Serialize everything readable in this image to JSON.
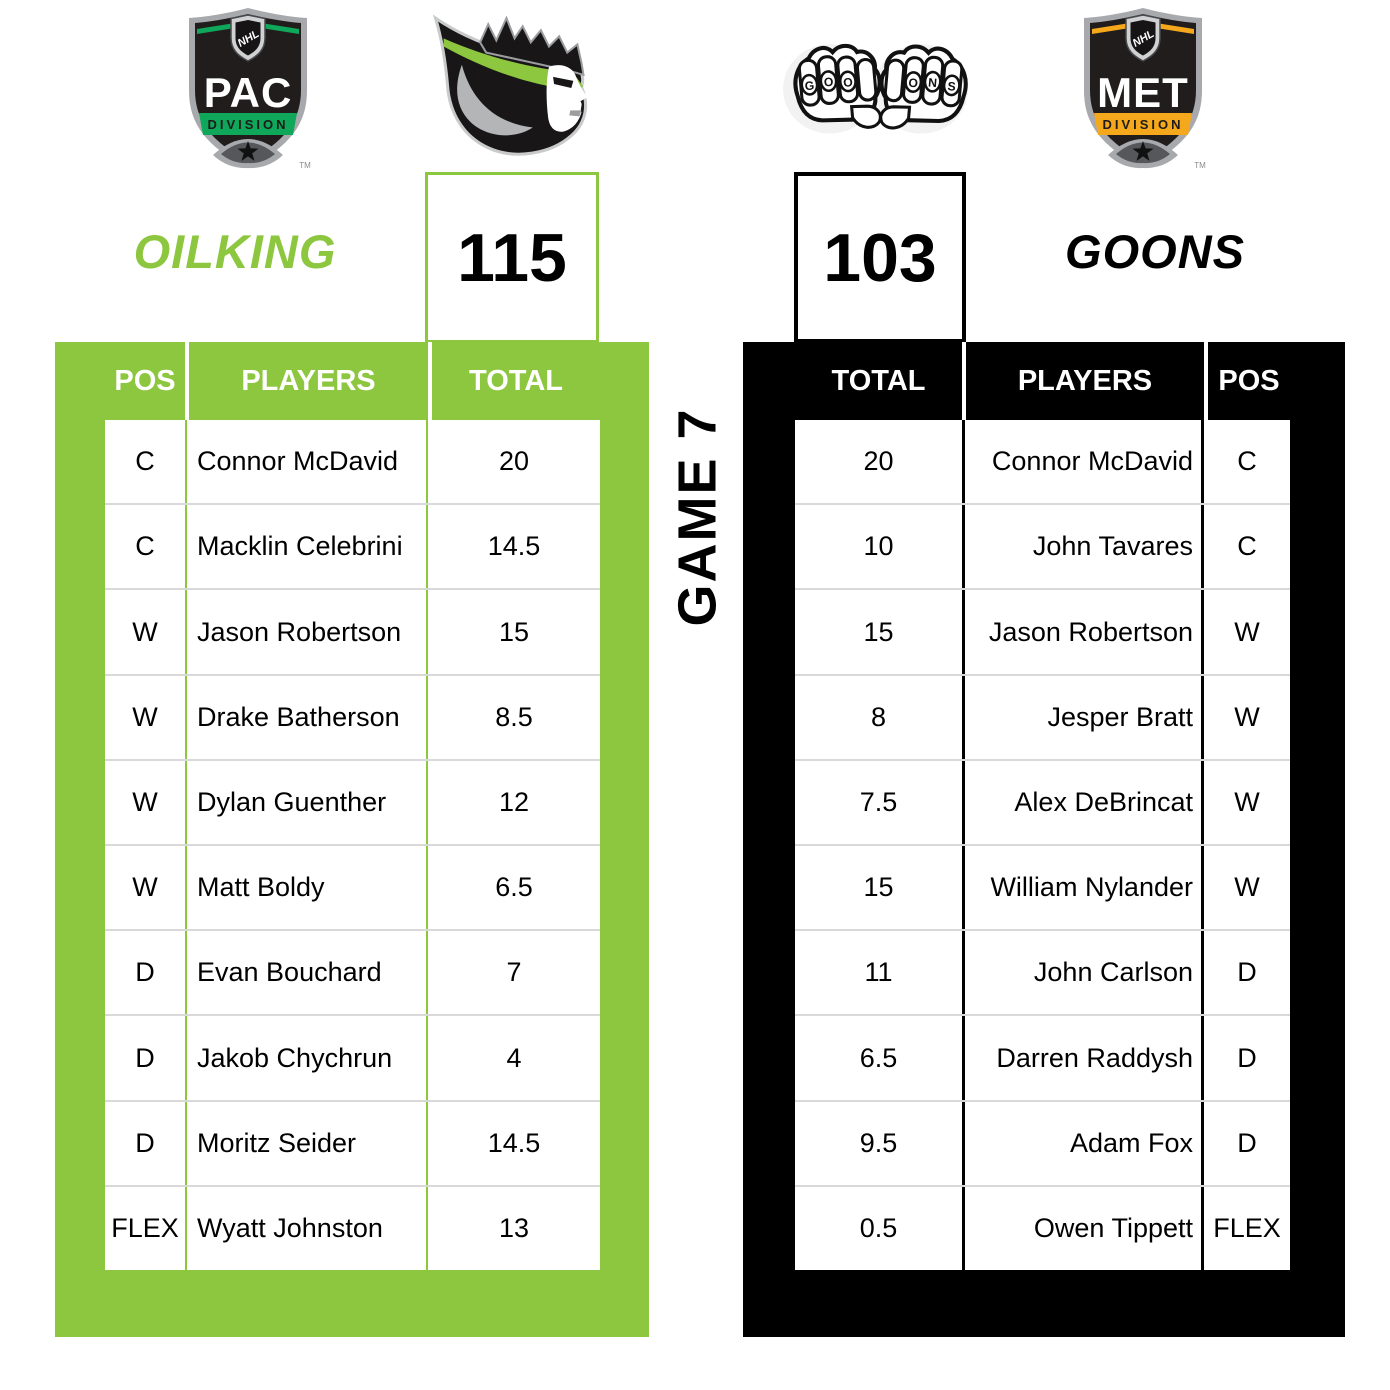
{
  "game": {
    "label": "GAME 7"
  },
  "colors": {
    "lime_green": "#8DC63F",
    "black": "#000000",
    "row_divider_gray": "#D9D9D9",
    "pac_green": "#0FA75A",
    "met_gold": "#F5A81C",
    "shield_silver": "#A7A9AC",
    "shield_dark": "#1E1C1B"
  },
  "left": {
    "division_badge": {
      "league": "NHL",
      "code": "PAC",
      "sub": "DIVISION",
      "tm": "TM"
    },
    "team_name": "OILKING",
    "score": "115",
    "headers": {
      "pos": "POS",
      "players": "PLAYERS",
      "total": "TOTAL"
    },
    "roster": [
      {
        "pos": "C",
        "name": "Connor McDavid",
        "total": "20"
      },
      {
        "pos": "C",
        "name": "Macklin Celebrini",
        "total": "14.5"
      },
      {
        "pos": "W",
        "name": "Jason Robertson",
        "total": "15"
      },
      {
        "pos": "W",
        "name": "Drake Batherson",
        "total": "8.5"
      },
      {
        "pos": "W",
        "name": "Dylan Guenther",
        "total": "12"
      },
      {
        "pos": "W",
        "name": "Matt Boldy",
        "total": "6.5"
      },
      {
        "pos": "D",
        "name": "Evan Bouchard",
        "total": "7"
      },
      {
        "pos": "D",
        "name": "Jakob Chychrun",
        "total": "4"
      },
      {
        "pos": "D",
        "name": "Moritz Seider",
        "total": "14.5"
      },
      {
        "pos": "FLEX",
        "name": "Wyatt Johnston",
        "total": "13"
      }
    ]
  },
  "right": {
    "division_badge": {
      "league": "NHL",
      "code": "MET",
      "sub": "DIVISION",
      "tm": "TM"
    },
    "team_name": "GOONS",
    "score": "103",
    "fists_letters": [
      "G",
      "O",
      "O",
      "O",
      "N",
      "S"
    ],
    "headers": {
      "total": "TOTAL",
      "players": "PLAYERS",
      "pos": "POS"
    },
    "roster": [
      {
        "total": "20",
        "name": "Connor McDavid",
        "pos": "C"
      },
      {
        "total": "10",
        "name": "John Tavares",
        "pos": "C"
      },
      {
        "total": "15",
        "name": "Jason Robertson",
        "pos": "W"
      },
      {
        "total": "8",
        "name": "Jesper Bratt",
        "pos": "W"
      },
      {
        "total": "7.5",
        "name": "Alex DeBrincat",
        "pos": "W"
      },
      {
        "total": "15",
        "name": "William Nylander",
        "pos": "W"
      },
      {
        "total": "11",
        "name": "John Carlson",
        "pos": "D"
      },
      {
        "total": "6.5",
        "name": "Darren Raddysh",
        "pos": "D"
      },
      {
        "total": "9.5",
        "name": "Adam Fox",
        "pos": "D"
      },
      {
        "total": "0.5",
        "name": "Owen Tippett",
        "pos": "FLEX"
      }
    ]
  }
}
